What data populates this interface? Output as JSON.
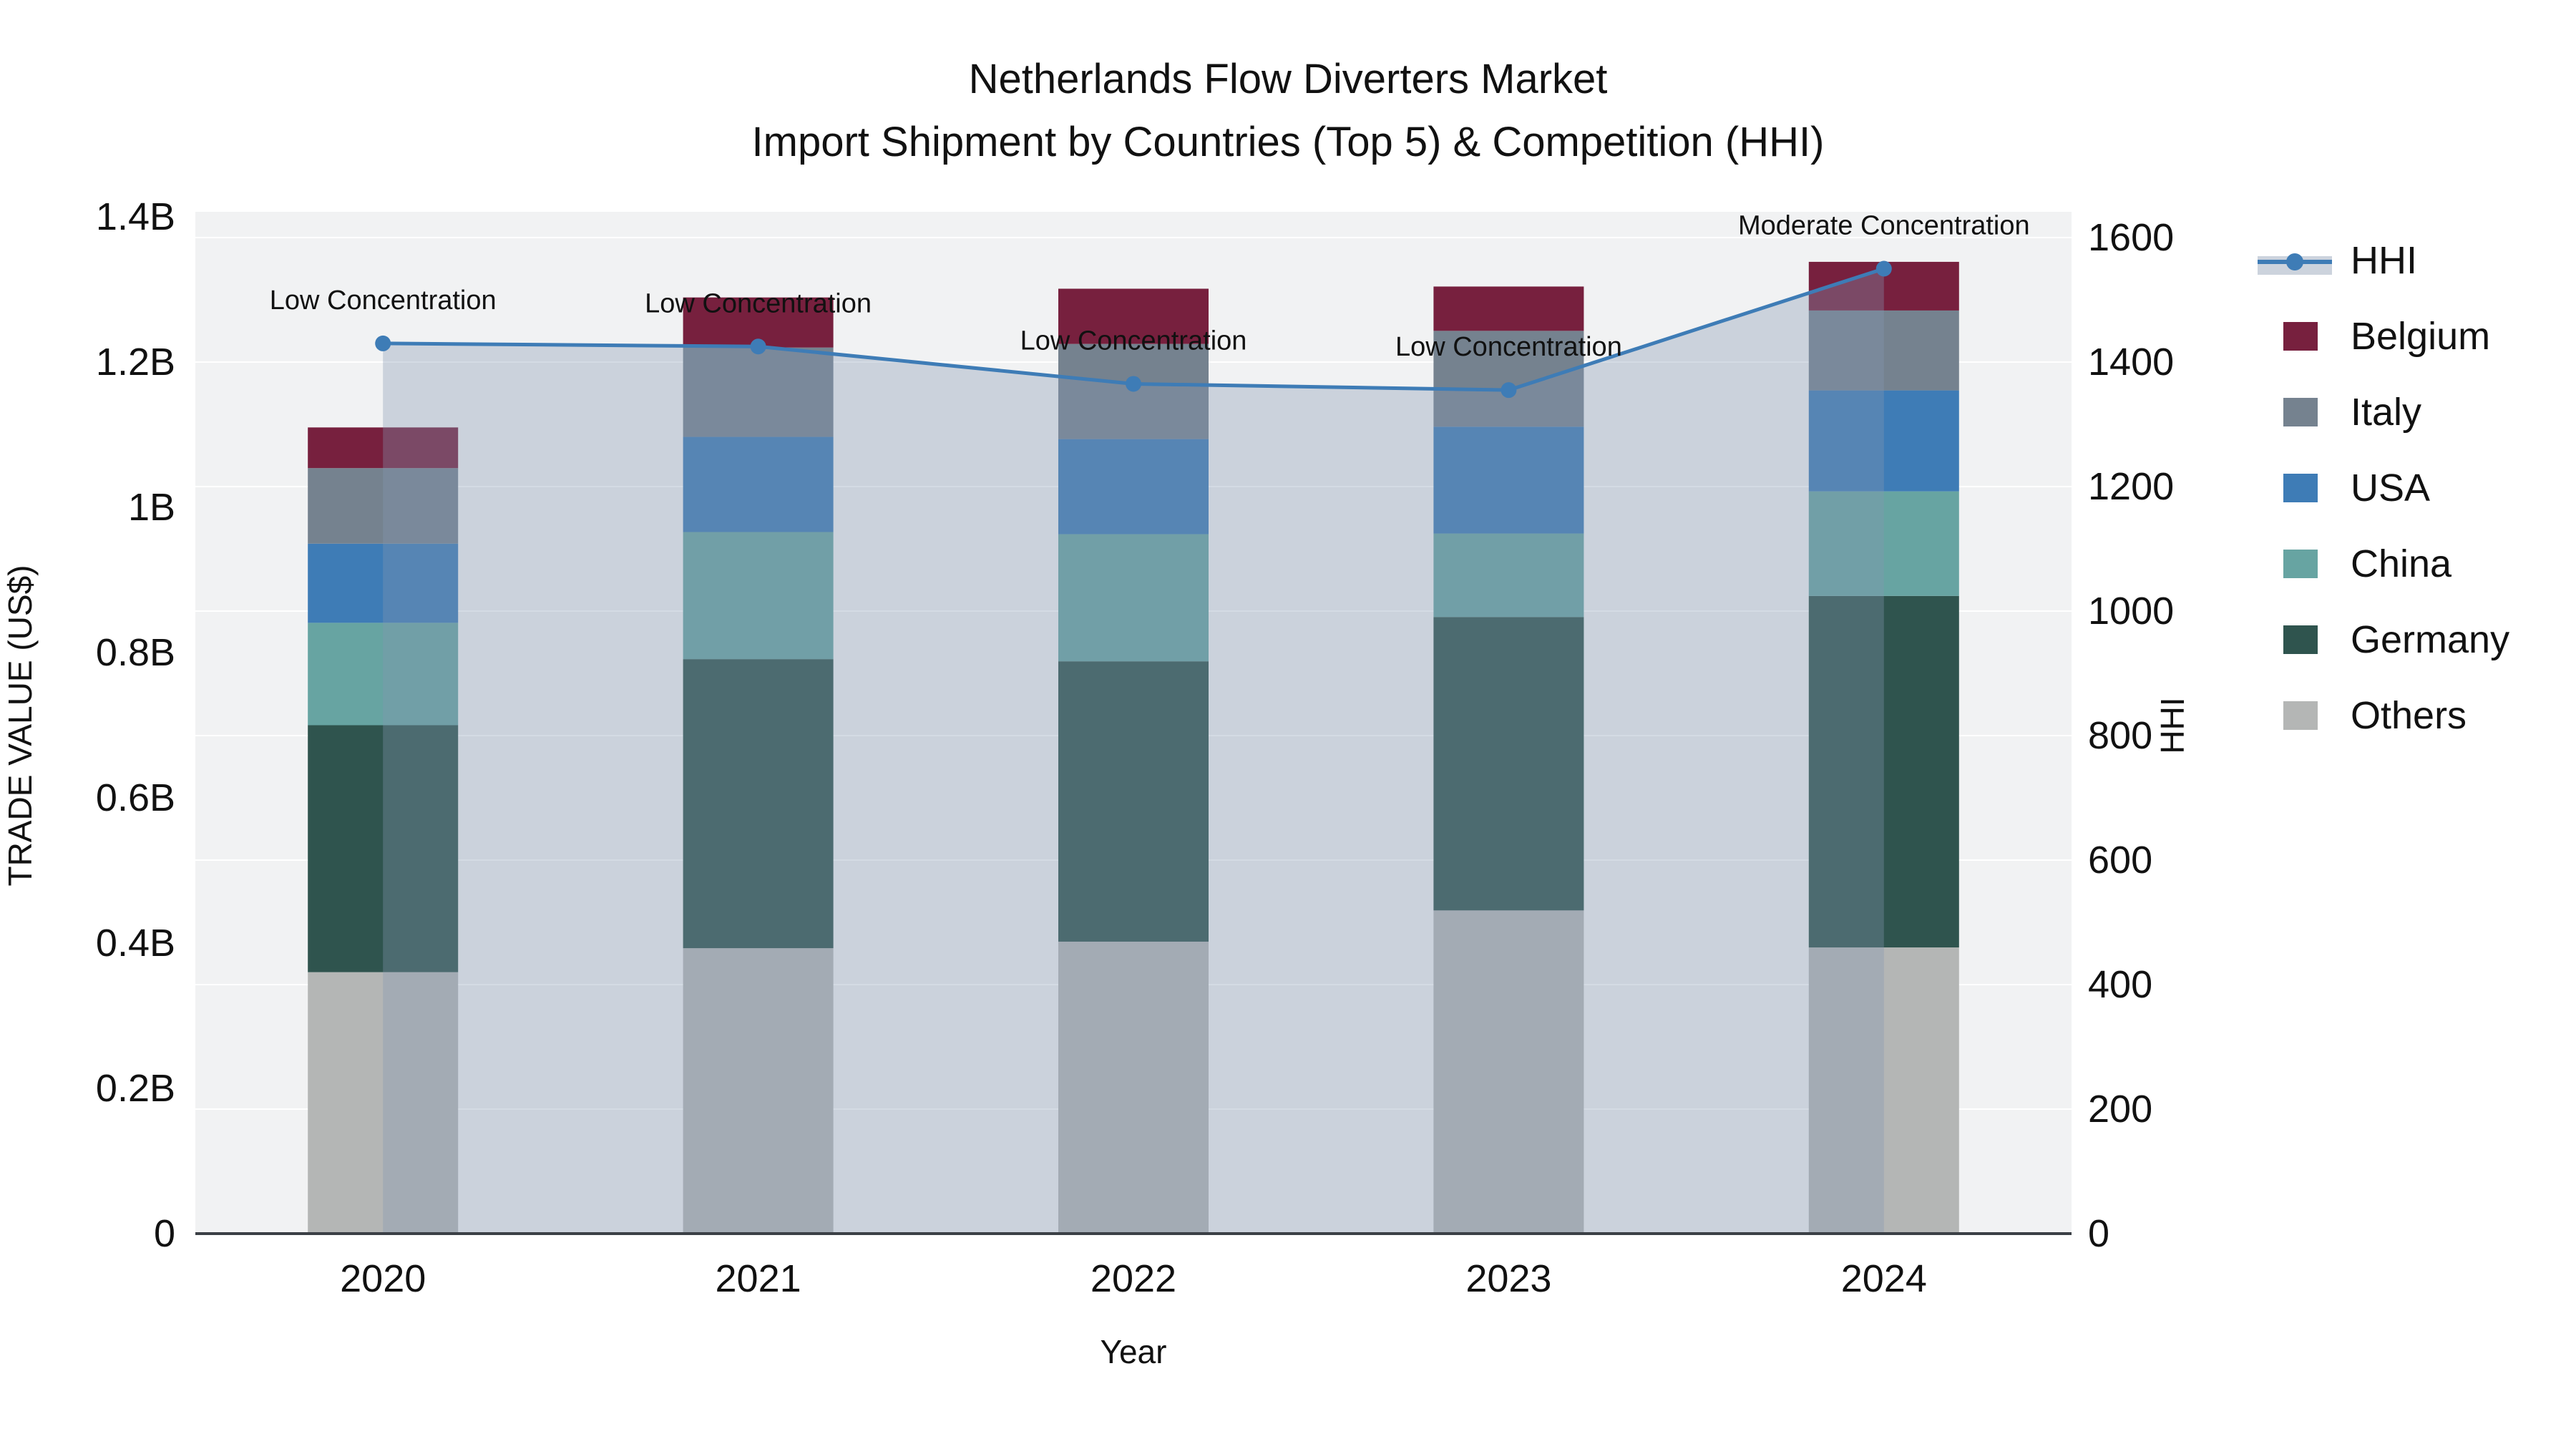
{
  "title": {
    "line1": "Netherlands Flow Diverters Market",
    "line2": "Import Shipment by Countries (Top 5) & Competition (HHI)"
  },
  "colors": {
    "plot_bg": "#F1F2F3",
    "grid": "#FFFFFF",
    "axis_line": "#3B4046",
    "text": "#111111",
    "hhi_line": "#3E7CB6",
    "area_fill": "rgba(133,151,178,0.35)",
    "area_fill_sample": "#CCD3DD"
  },
  "chart_data": {
    "type": "bar",
    "stacked": true,
    "categories": [
      "2020",
      "2021",
      "2022",
      "2023",
      "2024"
    ],
    "series": [
      {
        "name": "Others",
        "color": "#B4B6B5",
        "values_musd": [
          360,
          393,
          402,
          445,
          394
        ]
      },
      {
        "name": "Germany",
        "color": "#2F544E",
        "values_musd": [
          340,
          398,
          386,
          404,
          484
        ]
      },
      {
        "name": "China",
        "color": "#67A4A2",
        "values_musd": [
          141,
          175,
          175,
          115,
          144
        ]
      },
      {
        "name": "USA",
        "color": "#3E7CB6",
        "values_musd": [
          109,
          131,
          131,
          147,
          139
        ]
      },
      {
        "name": "Italy",
        "color": "#75828F",
        "values_musd": [
          104,
          123,
          131,
          132,
          110
        ]
      },
      {
        "name": "Belgium",
        "color": "#77203E",
        "values_musd": [
          56,
          69,
          76,
          61,
          67
        ]
      }
    ],
    "line_series": {
      "name": "HHI",
      "color": "#3E7CB6",
      "axis": "right",
      "values": [
        1430,
        1425,
        1365,
        1355,
        1550
      ],
      "area_fill": true
    },
    "annotations": [
      {
        "x": "2020",
        "text": "Low Concentration"
      },
      {
        "x": "2021",
        "text": "Low Concentration"
      },
      {
        "x": "2022",
        "text": "Low Concentration"
      },
      {
        "x": "2023",
        "text": "Low Concentration"
      },
      {
        "x": "2024",
        "text": "Moderate Concentration"
      }
    ],
    "xlabel": "Year",
    "ylabel_left": "TRADE VALUE (US$)",
    "ylabel_right": "HHI",
    "yticks_left": [
      {
        "value_usd": 0,
        "label": "0"
      },
      {
        "value_usd": 200000000,
        "label": "0.2B"
      },
      {
        "value_usd": 400000000,
        "label": "0.4B"
      },
      {
        "value_usd": 600000000,
        "label": "0.6B"
      },
      {
        "value_usd": 800000000,
        "label": "0.8B"
      },
      {
        "value_usd": 1000000000,
        "label": "1B"
      },
      {
        "value_usd": 1200000000,
        "label": "1.2B"
      },
      {
        "value_usd": 1400000000,
        "label": "1.4B"
      }
    ],
    "yticks_right": [
      {
        "value": 0,
        "label": "0"
      },
      {
        "value": 200,
        "label": "200"
      },
      {
        "value": 400,
        "label": "400"
      },
      {
        "value": 600,
        "label": "600"
      },
      {
        "value": 800,
        "label": "800"
      },
      {
        "value": 1000,
        "label": "1000"
      },
      {
        "value": 1200,
        "label": "1200"
      },
      {
        "value": 1400,
        "label": "1400"
      },
      {
        "value": 1600,
        "label": "1600"
      }
    ],
    "ylim_left_usd": [
      0,
      1400000000
    ],
    "ylim_right": [
      0,
      1600
    ],
    "grid": true,
    "legend_position": "right"
  },
  "legend": {
    "items": [
      {
        "label": "HHI",
        "type": "line",
        "color": "#3E7CB6"
      },
      {
        "label": "Belgium",
        "type": "swatch",
        "color": "#77203E"
      },
      {
        "label": "Italy",
        "type": "swatch",
        "color": "#75828F"
      },
      {
        "label": "USA",
        "type": "swatch",
        "color": "#3E7CB6"
      },
      {
        "label": "China",
        "type": "swatch",
        "color": "#67A4A2"
      },
      {
        "label": "Germany",
        "type": "swatch",
        "color": "#2F544E"
      },
      {
        "label": "Others",
        "type": "swatch",
        "color": "#B4B6B5"
      }
    ]
  }
}
